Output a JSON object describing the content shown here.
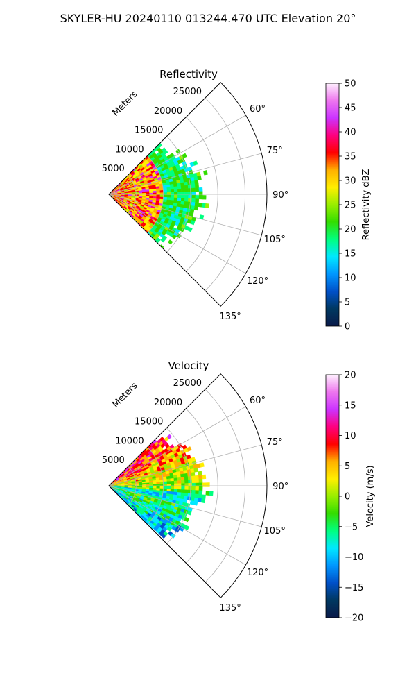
{
  "figure": {
    "suptitle": "SKYLER-HU  20240110  013244.470 UTC Elevation 20°"
  },
  "chart_data": [
    {
      "type": "heatmap",
      "subtype": "polar-sector",
      "title": "Reflectivity",
      "radial_label": "Meters",
      "r_ticks": [
        5000,
        10000,
        15000,
        20000,
        25000
      ],
      "r_lim": [
        0,
        29000
      ],
      "theta_ticks_deg": [
        60,
        75,
        90,
        105,
        120,
        135
      ],
      "theta_lim_deg": [
        45,
        135
      ],
      "theta_zero": "N",
      "theta_direction": "clockwise",
      "grid": true,
      "echo_extent": {
        "theta_deg": [
          45,
          135
        ],
        "r_max_m": [
          12500,
          17500
        ],
        "near_range_m": 9500
      },
      "colorbar": {
        "label": "Reflectivity dBZ",
        "min": 0,
        "max": 50,
        "ticks": [
          0,
          5,
          10,
          15,
          20,
          25,
          30,
          35,
          40,
          45,
          50
        ],
        "colormap": [
          "#0a1a4a",
          "#003860",
          "#0050c8",
          "#0096ff",
          "#00e8ff",
          "#00ff80",
          "#33dd00",
          "#99ee00",
          "#ffee00",
          "#ffb000",
          "#ff0000",
          "#ff0080",
          "#cc33ff",
          "#ee77ee",
          "#fff0ff"
        ]
      }
    },
    {
      "type": "heatmap",
      "subtype": "polar-sector",
      "title": "Velocity",
      "radial_label": "Meters",
      "r_ticks": [
        5000,
        10000,
        15000,
        20000,
        25000
      ],
      "r_lim": [
        0,
        29000
      ],
      "theta_ticks_deg": [
        60,
        75,
        90,
        105,
        120,
        135
      ],
      "theta_lim_deg": [
        45,
        135
      ],
      "theta_zero": "N",
      "theta_direction": "clockwise",
      "grid": true,
      "echo_extent": {
        "theta_deg": [
          45,
          135
        ],
        "r_max_m": [
          12500,
          17500
        ]
      },
      "colorbar": {
        "label": "Velocity (m/s)",
        "min": -20,
        "max": 20,
        "ticks": [
          -20,
          -15,
          -10,
          -5,
          0,
          5,
          10,
          15,
          20
        ],
        "colormap": [
          "#0a1a4a",
          "#003860",
          "#0050c8",
          "#0096ff",
          "#00e8ff",
          "#00ff80",
          "#33dd00",
          "#99ee00",
          "#ffee00",
          "#ffb000",
          "#ff0000",
          "#ff0080",
          "#cc33ff",
          "#ee77ee",
          "#fff0ff"
        ]
      }
    }
  ]
}
